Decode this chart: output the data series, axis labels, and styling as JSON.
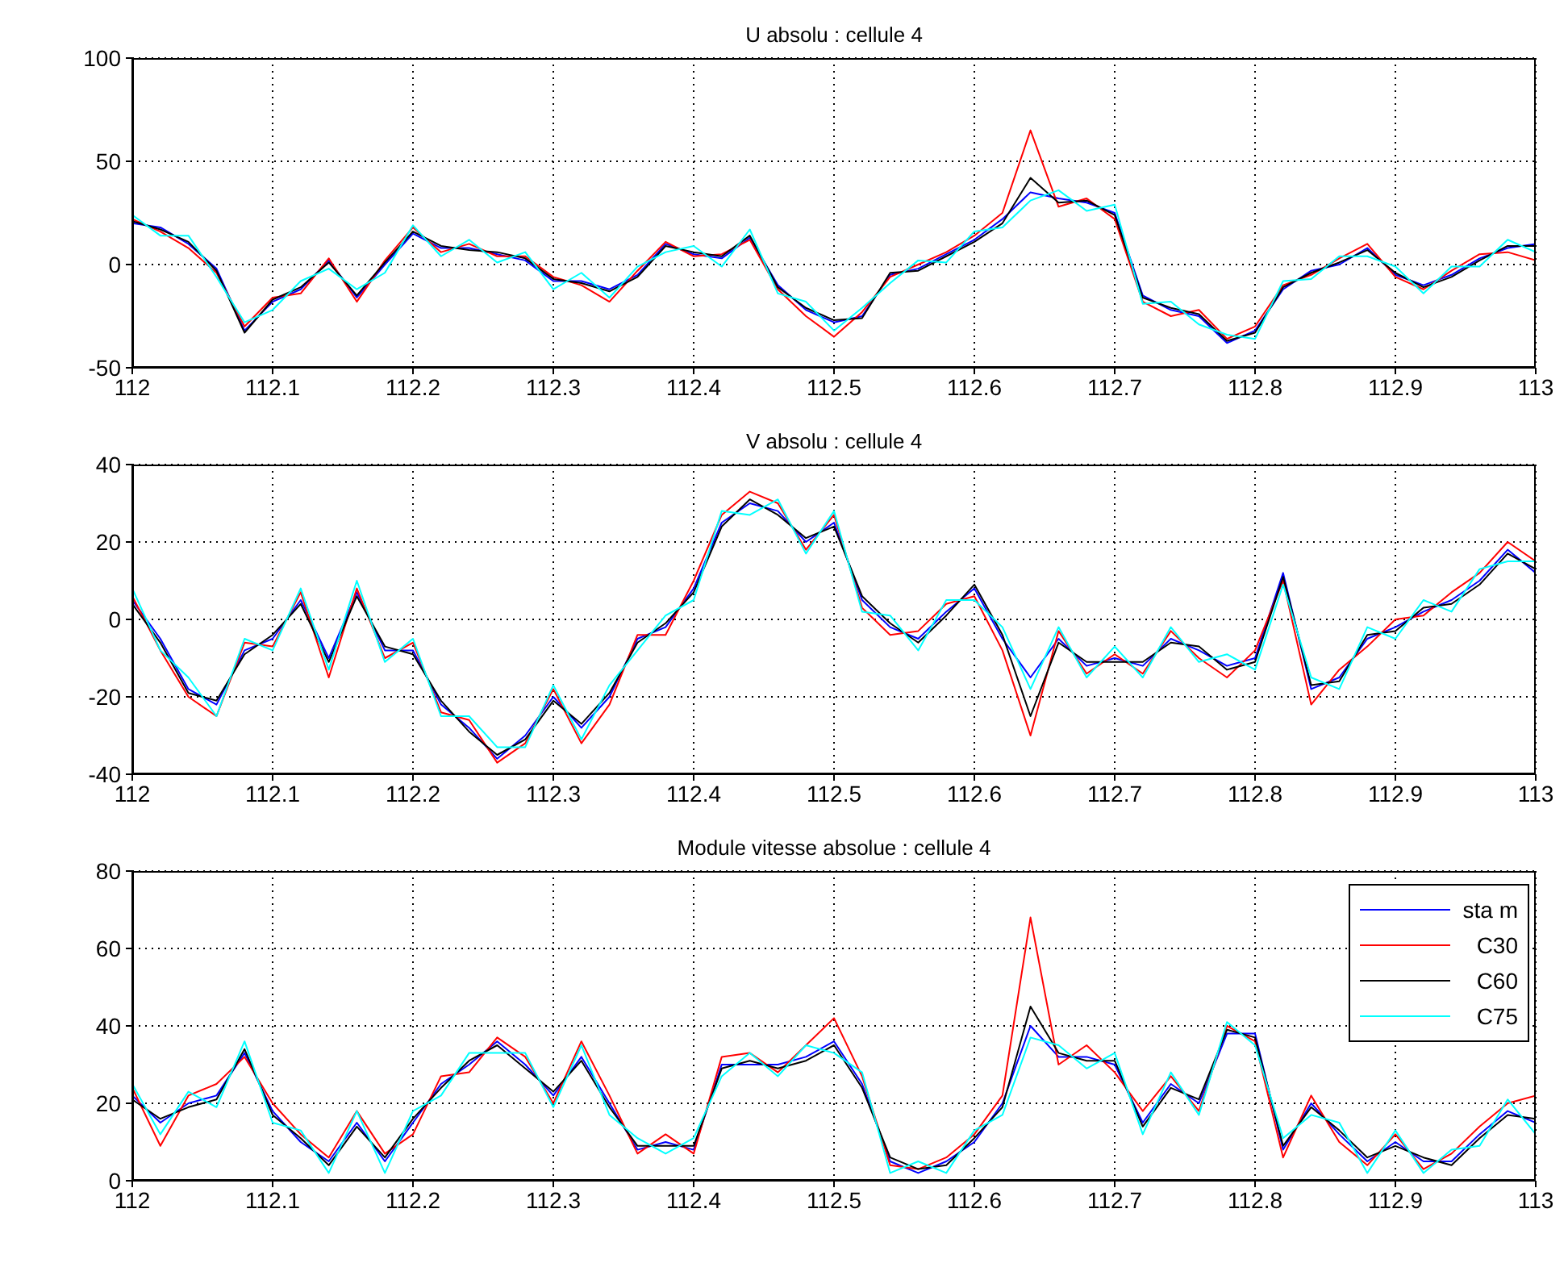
{
  "chart_data": [
    {
      "type": "line",
      "title": "U absolu : cellule 4",
      "x": [
        112,
        112.02,
        112.04,
        112.06,
        112.08,
        112.1,
        112.12,
        112.14,
        112.16,
        112.18,
        112.2,
        112.22,
        112.24,
        112.26,
        112.28,
        112.3,
        112.32,
        112.34,
        112.36,
        112.38,
        112.4,
        112.42,
        112.44,
        112.46,
        112.48,
        112.5,
        112.52,
        112.54,
        112.56,
        112.58,
        112.6,
        112.62,
        112.64,
        112.66,
        112.68,
        112.7,
        112.72,
        112.74,
        112.76,
        112.78,
        112.8,
        112.82,
        112.84,
        112.86,
        112.88,
        112.9,
        112.92,
        112.94,
        112.96,
        112.98,
        113
      ],
      "series": [
        {
          "color": "#0000ff",
          "values": [
            20,
            18,
            10,
            -2,
            -32,
            -18,
            -12,
            2,
            -16,
            0,
            15,
            8,
            8,
            5,
            2,
            -8,
            -8,
            -12,
            -5,
            10,
            5,
            3,
            13,
            -10,
            -22,
            -28,
            -25,
            -5,
            -2,
            5,
            12,
            22,
            35,
            32,
            30,
            25,
            -15,
            -22,
            -25,
            -38,
            -32,
            -12,
            -3,
            0,
            8,
            -5,
            -10,
            -5,
            3,
            8,
            10
          ]
        },
        {
          "color": "#ff0000",
          "values": [
            22,
            16,
            8,
            -4,
            -30,
            -16,
            -14,
            3,
            -18,
            2,
            18,
            6,
            10,
            4,
            4,
            -6,
            -10,
            -18,
            -3,
            11,
            4,
            5,
            12,
            -12,
            -25,
            -35,
            -23,
            -6,
            0,
            6,
            14,
            25,
            65,
            28,
            32,
            22,
            -18,
            -25,
            -22,
            -36,
            -30,
            -10,
            -5,
            3,
            10,
            -6,
            -12,
            -3,
            5,
            6,
            2
          ]
        },
        {
          "color": "#000000",
          "values": [
            21,
            17,
            11,
            -3,
            -33,
            -17,
            -11,
            1,
            -15,
            1,
            16,
            9,
            7,
            6,
            3,
            -7,
            -9,
            -13,
            -6,
            9,
            6,
            4,
            14,
            -11,
            -21,
            -27,
            -26,
            -4,
            -3,
            4,
            11,
            20,
            42,
            30,
            31,
            24,
            -16,
            -21,
            -24,
            -37,
            -33,
            -11,
            -4,
            1,
            7,
            -4,
            -11,
            -6,
            2,
            9,
            9
          ]
        },
        {
          "color": "#00ffff",
          "values": [
            24,
            14,
            14,
            -6,
            -28,
            -22,
            -8,
            -2,
            -12,
            -4,
            19,
            4,
            12,
            1,
            6,
            -12,
            -4,
            -16,
            -1,
            6,
            9,
            -1,
            17,
            -14,
            -18,
            -32,
            -21,
            -9,
            2,
            1,
            16,
            18,
            31,
            36,
            26,
            29,
            -19,
            -18,
            -29,
            -34,
            -36,
            -8,
            -7,
            4,
            4,
            -1,
            -14,
            -1,
            -1,
            12,
            6
          ]
        }
      ],
      "xlim": [
        112,
        113
      ],
      "xticks": [
        112,
        112.1,
        112.2,
        112.3,
        112.4,
        112.5,
        112.6,
        112.7,
        112.8,
        112.9,
        113
      ],
      "ylim": [
        -50,
        100
      ],
      "yticks": [
        -50,
        0,
        50,
        100
      ],
      "grid": true
    },
    {
      "type": "line",
      "title": "V absolu : cellule 4",
      "x": [
        112,
        112.02,
        112.04,
        112.06,
        112.08,
        112.1,
        112.12,
        112.14,
        112.16,
        112.18,
        112.2,
        112.22,
        112.24,
        112.26,
        112.28,
        112.3,
        112.32,
        112.34,
        112.36,
        112.38,
        112.4,
        112.42,
        112.44,
        112.46,
        112.48,
        112.5,
        112.52,
        112.54,
        112.56,
        112.58,
        112.6,
        112.62,
        112.64,
        112.66,
        112.68,
        112.7,
        112.72,
        112.74,
        112.76,
        112.78,
        112.8,
        112.82,
        112.84,
        112.86,
        112.88,
        112.9,
        112.92,
        112.94,
        112.96,
        112.98,
        113
      ],
      "series": [
        {
          "color": "#0000ff",
          "values": [
            5,
            -5,
            -18,
            -22,
            -8,
            -5,
            5,
            -10,
            7,
            -8,
            -8,
            -22,
            -28,
            -36,
            -30,
            -20,
            -28,
            -20,
            -5,
            -2,
            8,
            25,
            30,
            28,
            20,
            25,
            5,
            -2,
            -5,
            2,
            8,
            -5,
            -15,
            -5,
            -12,
            -10,
            -12,
            -5,
            -8,
            -12,
            -10,
            12,
            -18,
            -15,
            -5,
            -2,
            2,
            5,
            10,
            18,
            12
          ]
        },
        {
          "color": "#ff0000",
          "values": [
            6,
            -8,
            -20,
            -25,
            -6,
            -7,
            7,
            -15,
            8,
            -10,
            -6,
            -24,
            -26,
            -37,
            -32,
            -18,
            -32,
            -22,
            -4,
            -4,
            10,
            27,
            33,
            30,
            18,
            27,
            3,
            -4,
            -3,
            4,
            6,
            -8,
            -30,
            -3,
            -14,
            -9,
            -14,
            -3,
            -10,
            -15,
            -8,
            10,
            -22,
            -13,
            -7,
            0,
            1,
            7,
            12,
            20,
            15
          ]
        },
        {
          "color": "#000000",
          "values": [
            4,
            -6,
            -19,
            -21,
            -9,
            -4,
            4,
            -11,
            6,
            -7,
            -9,
            -21,
            -29,
            -35,
            -31,
            -21,
            -27,
            -19,
            -6,
            -1,
            7,
            24,
            31,
            27,
            21,
            24,
            6,
            -1,
            -6,
            1,
            9,
            -4,
            -25,
            -6,
            -11,
            -11,
            -11,
            -6,
            -7,
            -13,
            -11,
            11,
            -17,
            -16,
            -4,
            -3,
            3,
            4,
            9,
            17,
            13
          ]
        },
        {
          "color": "#00ffff",
          "values": [
            8,
            -8,
            -15,
            -25,
            -5,
            -8,
            8,
            -13,
            10,
            -11,
            -5,
            -25,
            -25,
            -33,
            -33,
            -17,
            -31,
            -17,
            -8,
            1,
            5,
            28,
            27,
            31,
            17,
            28,
            2,
            1,
            -8,
            5,
            5,
            -2,
            -18,
            -2,
            -15,
            -7,
            -15,
            -2,
            -11,
            -9,
            -13,
            9,
            -15,
            -18,
            -2,
            -5,
            5,
            2,
            13,
            15,
            15
          ]
        }
      ],
      "xlim": [
        112,
        113
      ],
      "xticks": [
        112,
        112.1,
        112.2,
        112.3,
        112.4,
        112.5,
        112.6,
        112.7,
        112.8,
        112.9,
        113
      ],
      "ylim": [
        -40,
        40
      ],
      "yticks": [
        -40,
        -20,
        0,
        20,
        40
      ],
      "grid": true
    },
    {
      "type": "line",
      "title": "Module vitesse absolue : cellule 4",
      "x": [
        112,
        112.02,
        112.04,
        112.06,
        112.08,
        112.1,
        112.12,
        112.14,
        112.16,
        112.18,
        112.2,
        112.22,
        112.24,
        112.26,
        112.28,
        112.3,
        112.32,
        112.34,
        112.36,
        112.38,
        112.4,
        112.42,
        112.44,
        112.46,
        112.48,
        112.5,
        112.52,
        112.54,
        112.56,
        112.58,
        112.6,
        112.62,
        112.64,
        112.66,
        112.68,
        112.7,
        112.72,
        112.74,
        112.76,
        112.78,
        112.8,
        112.82,
        112.84,
        112.86,
        112.88,
        112.9,
        112.92,
        112.94,
        112.96,
        112.98,
        113
      ],
      "series": [
        {
          "name": "sta m",
          "color": "#0000ff",
          "values": [
            22,
            15,
            20,
            22,
            33,
            18,
            10,
            5,
            15,
            5,
            15,
            25,
            30,
            36,
            30,
            22,
            32,
            20,
            8,
            10,
            8,
            30,
            30,
            30,
            32,
            36,
            25,
            5,
            2,
            5,
            10,
            20,
            40,
            32,
            32,
            30,
            15,
            25,
            20,
            38,
            38,
            8,
            20,
            12,
            5,
            10,
            5,
            5,
            12,
            18,
            15
          ]
        },
        {
          "name": "C30",
          "color": "#ff0000",
          "values": [
            24,
            9,
            22,
            25,
            32,
            20,
            12,
            6,
            18,
            7,
            12,
            27,
            28,
            37,
            32,
            20,
            36,
            22,
            7,
            12,
            7,
            32,
            33,
            28,
            35,
            42,
            27,
            4,
            3,
            6,
            12,
            22,
            68,
            30,
            35,
            28,
            18,
            27,
            18,
            40,
            36,
            6,
            22,
            10,
            4,
            12,
            3,
            7,
            14,
            20,
            22
          ]
        },
        {
          "name": "C60",
          "color": "#000000",
          "values": [
            21,
            16,
            19,
            21,
            34,
            17,
            11,
            4,
            14,
            6,
            16,
            24,
            31,
            35,
            29,
            23,
            31,
            19,
            9,
            9,
            9,
            29,
            31,
            29,
            31,
            35,
            24,
            6,
            3,
            4,
            11,
            19,
            45,
            33,
            31,
            31,
            14,
            24,
            21,
            39,
            37,
            9,
            19,
            13,
            6,
            9,
            6,
            4,
            11,
            17,
            16
          ]
        },
        {
          "name": "C75",
          "color": "#00ffff",
          "values": [
            25,
            12,
            23,
            19,
            36,
            15,
            13,
            2,
            18,
            2,
            18,
            22,
            33,
            33,
            33,
            19,
            35,
            17,
            11,
            7,
            11,
            27,
            33,
            27,
            35,
            33,
            28,
            2,
            5,
            2,
            13,
            17,
            37,
            35,
            29,
            33,
            12,
            28,
            17,
            41,
            35,
            11,
            17,
            15,
            2,
            13,
            2,
            8,
            9,
            21,
            12
          ]
        }
      ],
      "xlim": [
        112,
        113
      ],
      "xticks": [
        112,
        112.1,
        112.2,
        112.3,
        112.4,
        112.5,
        112.6,
        112.7,
        112.8,
        112.9,
        113
      ],
      "ylim": [
        0,
        80
      ],
      "yticks": [
        0,
        20,
        40,
        60,
        80
      ],
      "grid": true,
      "legend": "top right"
    }
  ]
}
